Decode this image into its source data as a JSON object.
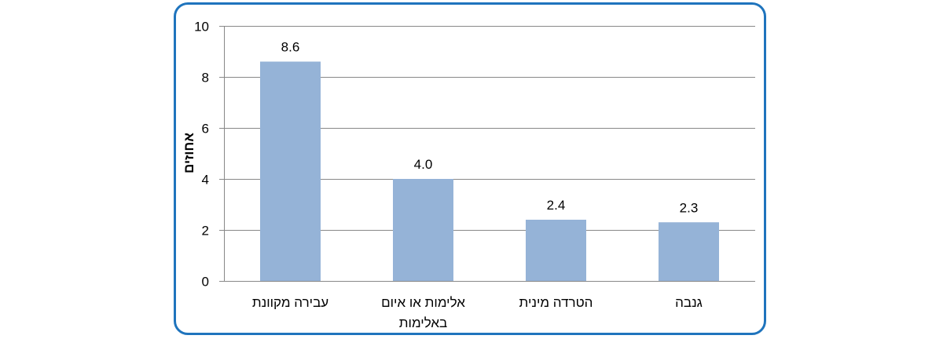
{
  "chart_data": {
    "type": "bar",
    "categories": [
      [
        "עבירה מקוונת"
      ],
      [
        "אלימות או איום",
        "באלימות"
      ],
      [
        "הטרדה מינית"
      ],
      [
        "גנבה"
      ]
    ],
    "values": [
      8.6,
      4.0,
      2.4,
      2.3
    ],
    "value_labels": [
      "8.6",
      "4.0",
      "2.4",
      "2.3"
    ],
    "ylabel": "אחוזים",
    "ylim": [
      0,
      10
    ],
    "yticks": [
      0,
      2,
      4,
      6,
      8,
      10
    ],
    "grid": true,
    "legend": "none",
    "bar_color": "#95b3d7",
    "frame_color": "#1f74bd"
  }
}
